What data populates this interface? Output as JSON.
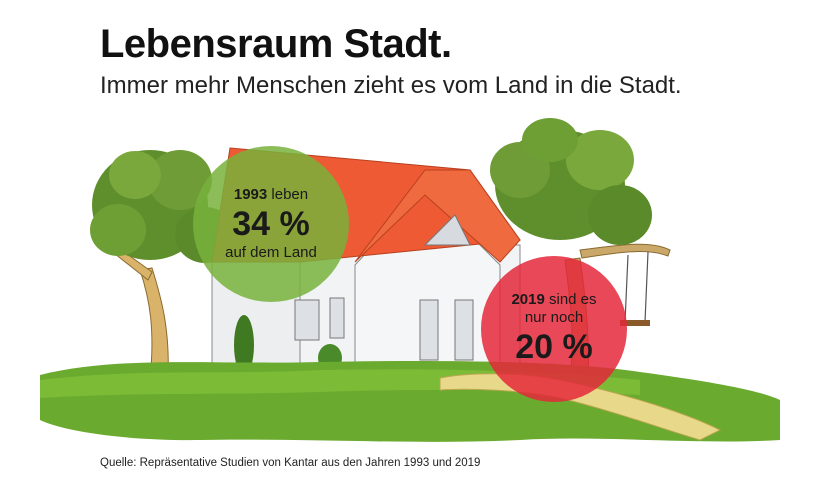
{
  "header": {
    "title": "Lebensraum Stadt.",
    "subtitle": "Immer mehr Menschen zieht es vom Land in die Stadt."
  },
  "stat_1993": {
    "year": "1993",
    "line1_rest": " leben",
    "value": "34 %",
    "line3": "auf dem Land",
    "color": "#78b23c"
  },
  "stat_2019": {
    "year": "2019",
    "line1_rest": " sind es",
    "line2": "nur noch",
    "value": "20 %",
    "color": "#e4283a"
  },
  "source": "Quelle: Repräsentative Studien von Kantar aus den Jahren 1993 und 2019"
}
